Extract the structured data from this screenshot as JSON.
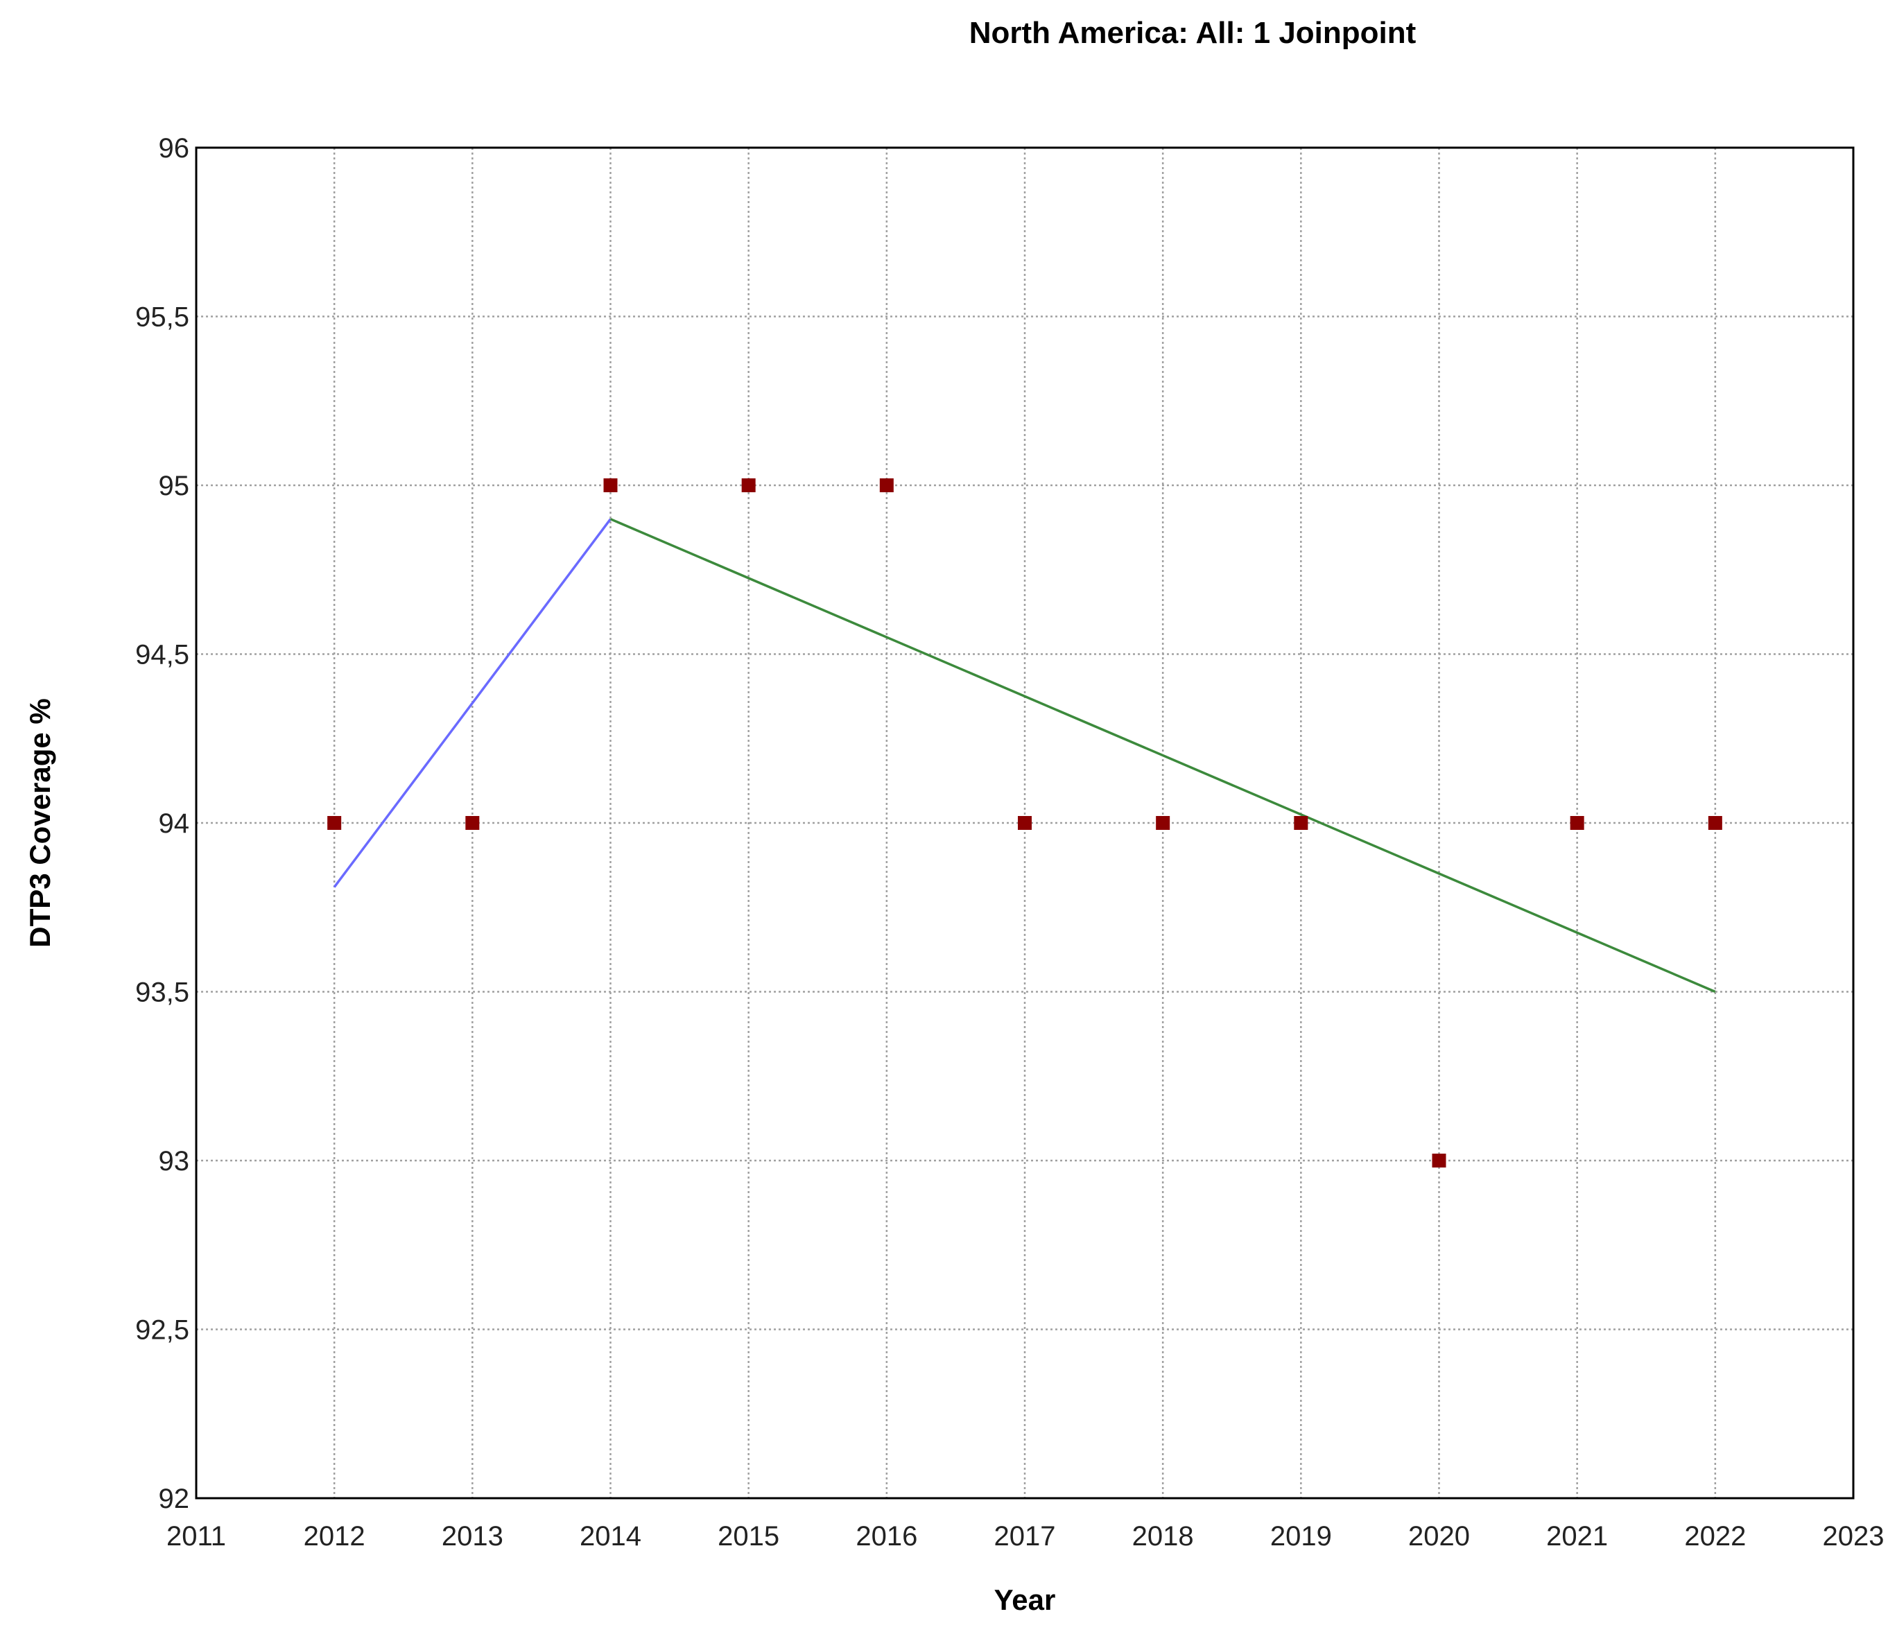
{
  "chart_data": {
    "type": "scatter",
    "title": "North America: All: 1 Joinpoint",
    "xlabel": "Year",
    "ylabel": "DTP3 Coverage %",
    "xlim": [
      2011,
      2023
    ],
    "ylim": [
      92,
      96
    ],
    "x_ticks": [
      "2011",
      "2012",
      "2013",
      "2014",
      "2015",
      "2016",
      "2017",
      "2018",
      "2019",
      "2020",
      "2021",
      "2022",
      "2023"
    ],
    "y_ticks": [
      "92",
      "92,5",
      "93",
      "93,5",
      "94",
      "94,5",
      "95",
      "95,5",
      "96"
    ],
    "grid": true,
    "observed": {
      "color": "#8b0000",
      "x": [
        2012,
        2013,
        2014,
        2015,
        2016,
        2017,
        2018,
        2019,
        2020,
        2021,
        2022
      ],
      "y": [
        94,
        94,
        95,
        95,
        95,
        94,
        94,
        94,
        93,
        94,
        94
      ]
    },
    "segments": [
      {
        "color": "#6a6aff",
        "x": [
          2012,
          2014
        ],
        "y": [
          93.81,
          94.9
        ]
      },
      {
        "color": "#3c8a3c",
        "x": [
          2014,
          2022
        ],
        "y": [
          94.9,
          93.5
        ]
      }
    ]
  }
}
